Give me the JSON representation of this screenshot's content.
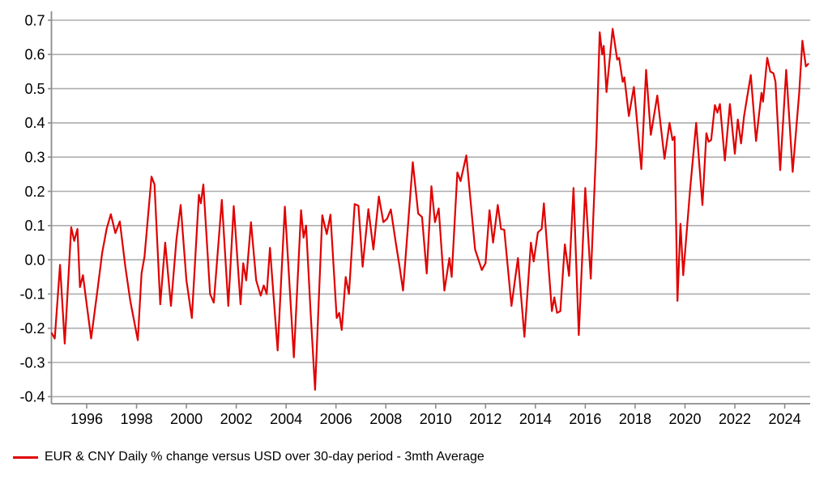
{
  "chart_data": {
    "type": "line",
    "title": "",
    "xlabel": "",
    "ylabel": "",
    "grid": true,
    "legend_position": "bottom-left",
    "x_range": [
      1994.5,
      2025.1
    ],
    "ylim": [
      -0.4,
      0.7
    ],
    "yticks": [
      0.7,
      0.6,
      0.5,
      0.4,
      0.3,
      0.2,
      0.1,
      0.0,
      -0.1,
      -0.2,
      -0.3,
      -0.4
    ],
    "xticks": [
      1996,
      1998,
      2000,
      2002,
      2004,
      2006,
      2008,
      2010,
      2012,
      2014,
      2016,
      2018,
      2020,
      2022,
      2024
    ],
    "colors": {
      "line": "#e00000",
      "grid": "#adadad",
      "axis": "#8c8c8c",
      "text": "#000000",
      "background": "#ffffff"
    },
    "series": [
      {
        "name": "EUR & CNY Daily % change versus USD over 30-day period - 3mth Average",
        "color": "#e00000",
        "points": [
          [
            1994.58,
            -0.215
          ],
          [
            1994.72,
            -0.23
          ],
          [
            1994.93,
            -0.015
          ],
          [
            1995.12,
            -0.245
          ],
          [
            1995.38,
            0.095
          ],
          [
            1995.5,
            0.055
          ],
          [
            1995.63,
            0.09
          ],
          [
            1995.73,
            -0.08
          ],
          [
            1995.85,
            -0.045
          ],
          [
            1996.0,
            -0.13
          ],
          [
            1996.18,
            -0.23
          ],
          [
            1996.45,
            -0.08
          ],
          [
            1996.62,
            0.02
          ],
          [
            1996.8,
            0.09
          ],
          [
            1996.97,
            0.133
          ],
          [
            1997.15,
            0.078
          ],
          [
            1997.33,
            0.112
          ],
          [
            1997.55,
            -0.02
          ],
          [
            1997.75,
            -0.12
          ],
          [
            1998.05,
            -0.235
          ],
          [
            1998.2,
            -0.04
          ],
          [
            1998.32,
            0.01
          ],
          [
            1998.6,
            0.243
          ],
          [
            1998.72,
            0.22
          ],
          [
            1998.95,
            -0.13
          ],
          [
            1999.15,
            0.05
          ],
          [
            1999.38,
            -0.135
          ],
          [
            1999.6,
            0.06
          ],
          [
            1999.77,
            0.16
          ],
          [
            2000.0,
            -0.06
          ],
          [
            2000.22,
            -0.17
          ],
          [
            2000.5,
            0.19
          ],
          [
            2000.58,
            0.165
          ],
          [
            2000.68,
            0.22
          ],
          [
            2000.95,
            -0.1
          ],
          [
            2001.1,
            -0.125
          ],
          [
            2001.42,
            0.175
          ],
          [
            2001.68,
            -0.135
          ],
          [
            2001.9,
            0.157
          ],
          [
            2002.17,
            -0.13
          ],
          [
            2002.28,
            -0.01
          ],
          [
            2002.4,
            -0.06
          ],
          [
            2002.59,
            0.11
          ],
          [
            2002.8,
            -0.06
          ],
          [
            2002.98,
            -0.105
          ],
          [
            2003.1,
            -0.075
          ],
          [
            2003.22,
            -0.1
          ],
          [
            2003.35,
            0.035
          ],
          [
            2003.66,
            -0.265
          ],
          [
            2003.95,
            0.155
          ],
          [
            2004.31,
            -0.285
          ],
          [
            2004.6,
            0.145
          ],
          [
            2004.7,
            0.065
          ],
          [
            2004.8,
            0.1
          ],
          [
            2004.98,
            -0.15
          ],
          [
            2005.16,
            -0.38
          ],
          [
            2005.45,
            0.13
          ],
          [
            2005.63,
            0.075
          ],
          [
            2005.78,
            0.132
          ],
          [
            2006.03,
            -0.17
          ],
          [
            2006.13,
            -0.155
          ],
          [
            2006.23,
            -0.205
          ],
          [
            2006.39,
            -0.05
          ],
          [
            2006.52,
            -0.1
          ],
          [
            2006.75,
            0.163
          ],
          [
            2006.9,
            0.158
          ],
          [
            2007.07,
            -0.02
          ],
          [
            2007.3,
            0.148
          ],
          [
            2007.5,
            0.03
          ],
          [
            2007.72,
            0.185
          ],
          [
            2007.9,
            0.11
          ],
          [
            2008.05,
            0.12
          ],
          [
            2008.2,
            0.147
          ],
          [
            2008.4,
            0.05
          ],
          [
            2008.55,
            -0.02
          ],
          [
            2008.69,
            -0.09
          ],
          [
            2009.08,
            0.285
          ],
          [
            2009.3,
            0.135
          ],
          [
            2009.45,
            0.125
          ],
          [
            2009.64,
            -0.04
          ],
          [
            2009.83,
            0.215
          ],
          [
            2009.97,
            0.11
          ],
          [
            2010.12,
            0.15
          ],
          [
            2010.35,
            -0.09
          ],
          [
            2010.55,
            0.005
          ],
          [
            2010.64,
            -0.05
          ],
          [
            2010.87,
            0.255
          ],
          [
            2011.0,
            0.23
          ],
          [
            2011.23,
            0.305
          ],
          [
            2011.58,
            0.03
          ],
          [
            2011.74,
            -0.005
          ],
          [
            2011.85,
            -0.03
          ],
          [
            2012.0,
            -0.01
          ],
          [
            2012.16,
            0.145
          ],
          [
            2012.3,
            0.05
          ],
          [
            2012.49,
            0.16
          ],
          [
            2012.62,
            0.09
          ],
          [
            2012.75,
            0.088
          ],
          [
            2013.04,
            -0.135
          ],
          [
            2013.3,
            0.005
          ],
          [
            2013.56,
            -0.225
          ],
          [
            2013.82,
            0.05
          ],
          [
            2013.93,
            -0.005
          ],
          [
            2014.1,
            0.08
          ],
          [
            2014.25,
            0.09
          ],
          [
            2014.34,
            0.165
          ],
          [
            2014.66,
            -0.15
          ],
          [
            2014.76,
            -0.11
          ],
          [
            2014.87,
            -0.155
          ],
          [
            2015.0,
            -0.15
          ],
          [
            2015.18,
            0.045
          ],
          [
            2015.35,
            -0.047
          ],
          [
            2015.53,
            0.21
          ],
          [
            2015.74,
            -0.22
          ],
          [
            2016.0,
            0.21
          ],
          [
            2016.22,
            -0.055
          ],
          [
            2016.45,
            0.35
          ],
          [
            2016.58,
            0.665
          ],
          [
            2016.68,
            0.6
          ],
          [
            2016.74,
            0.625
          ],
          [
            2016.85,
            0.49
          ],
          [
            2017.1,
            0.675
          ],
          [
            2017.28,
            0.585
          ],
          [
            2017.36,
            0.59
          ],
          [
            2017.5,
            0.52
          ],
          [
            2017.57,
            0.533
          ],
          [
            2017.75,
            0.42
          ],
          [
            2017.95,
            0.505
          ],
          [
            2018.25,
            0.265
          ],
          [
            2018.44,
            0.555
          ],
          [
            2018.63,
            0.365
          ],
          [
            2018.89,
            0.48
          ],
          [
            2019.18,
            0.295
          ],
          [
            2019.38,
            0.4
          ],
          [
            2019.5,
            0.35
          ],
          [
            2019.58,
            0.36
          ],
          [
            2019.7,
            -0.12
          ],
          [
            2019.82,
            0.105
          ],
          [
            2019.93,
            -0.045
          ],
          [
            2020.2,
            0.2
          ],
          [
            2020.45,
            0.4
          ],
          [
            2020.7,
            0.16
          ],
          [
            2020.86,
            0.37
          ],
          [
            2020.95,
            0.345
          ],
          [
            2021.05,
            0.35
          ],
          [
            2021.2,
            0.452
          ],
          [
            2021.3,
            0.43
          ],
          [
            2021.4,
            0.455
          ],
          [
            2021.6,
            0.29
          ],
          [
            2021.8,
            0.455
          ],
          [
            2022.0,
            0.31
          ],
          [
            2022.12,
            0.41
          ],
          [
            2022.25,
            0.34
          ],
          [
            2022.37,
            0.42
          ],
          [
            2022.64,
            0.54
          ],
          [
            2022.85,
            0.347
          ],
          [
            2023.07,
            0.488
          ],
          [
            2023.13,
            0.462
          ],
          [
            2023.3,
            0.59
          ],
          [
            2023.42,
            0.55
          ],
          [
            2023.55,
            0.545
          ],
          [
            2023.63,
            0.52
          ],
          [
            2023.82,
            0.262
          ],
          [
            2024.06,
            0.555
          ],
          [
            2024.32,
            0.257
          ],
          [
            2024.58,
            0.486
          ],
          [
            2024.71,
            0.64
          ],
          [
            2024.85,
            0.565
          ],
          [
            2024.94,
            0.572
          ]
        ]
      }
    ]
  },
  "legend": {
    "label": "EUR & CNY Daily % change versus USD over 30-day period - 3mth Average"
  }
}
